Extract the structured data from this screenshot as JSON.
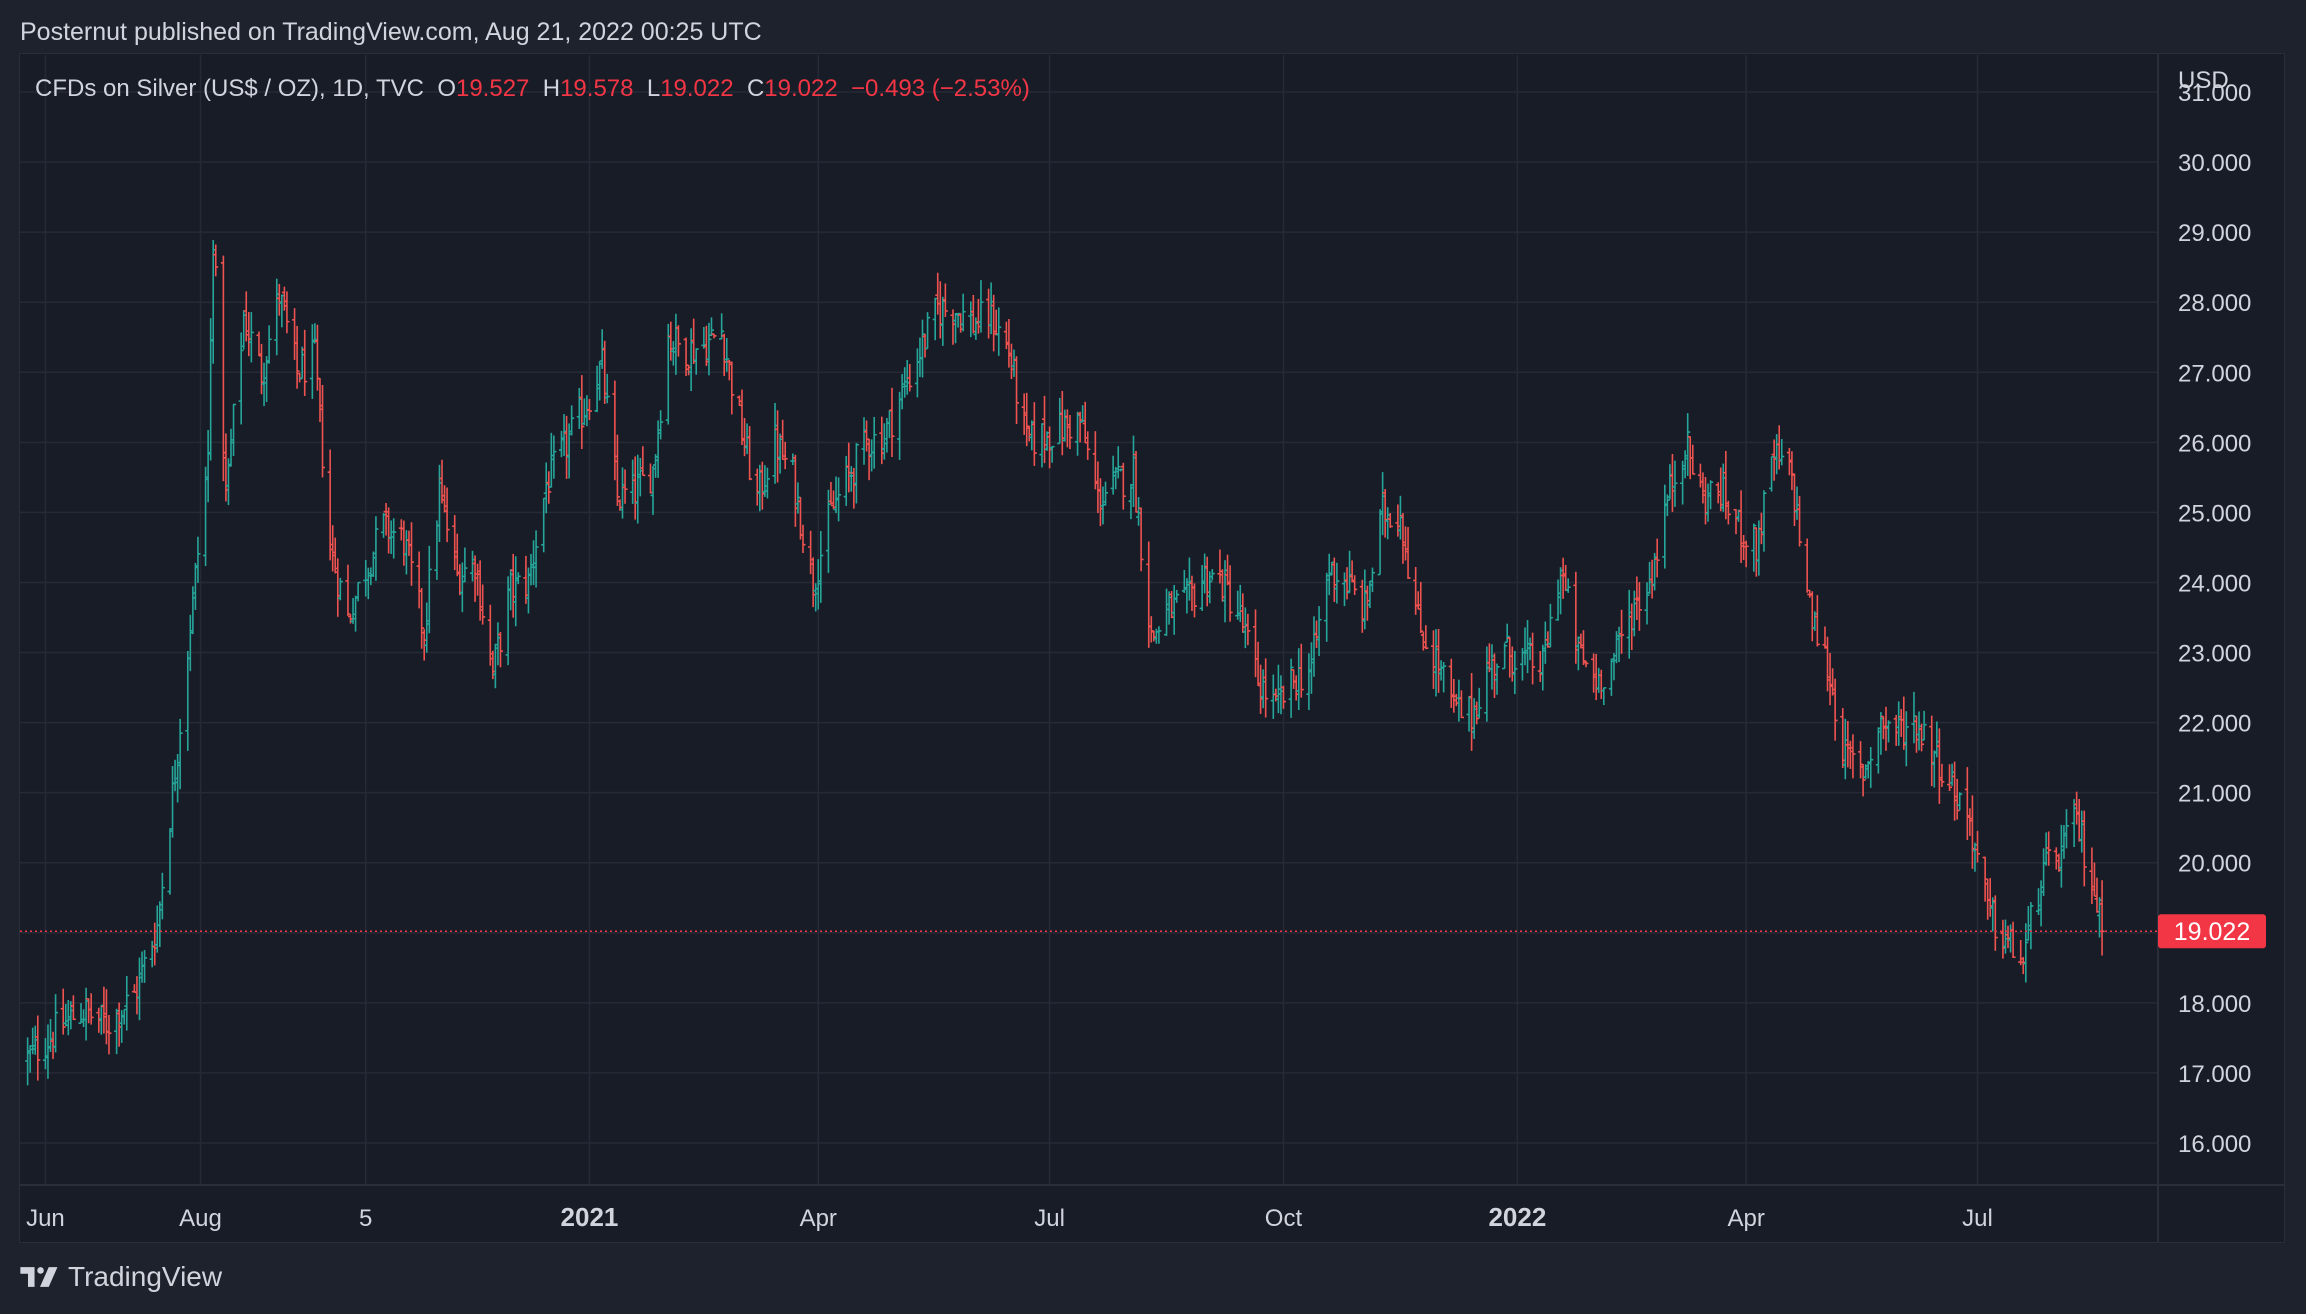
{
  "header": {
    "published": "Posternut published on TradingView.com, Aug 21, 2022 00:25 UTC"
  },
  "legend": {
    "symbol": "CFDs on Silver (US$ / OZ), 1D, TVC",
    "o_label": "O",
    "o_value": "19.527",
    "h_label": "H",
    "h_value": "19.578",
    "l_label": "L",
    "l_value": "19.022",
    "c_label": "C",
    "c_value": "19.022",
    "change": "−0.493 (−2.53%)"
  },
  "colors": {
    "up": "#26a69a",
    "down": "#ef5350",
    "price_tag": "#f23645",
    "grid": "#262a36",
    "text": "#d1d4dc"
  },
  "footer": {
    "brand": "TradingView",
    "logo_icon": "tradingview-logo-icon"
  },
  "chart_data": {
    "type": "ohlc",
    "title": "CFDs on Silver (US$ / OZ), 1D, TVC",
    "currency_label": "USD",
    "y_ticks": [
      "16.000",
      "17.000",
      "18.000",
      "19.000",
      "20.000",
      "21.000",
      "22.000",
      "23.000",
      "24.000",
      "25.000",
      "26.000",
      "27.000",
      "28.000",
      "29.000",
      "30.000",
      "31.000"
    ],
    "x_ticks": [
      {
        "label": "Jun",
        "date": "2020-06-01",
        "bold": false
      },
      {
        "label": "Aug",
        "date": "2020-08-01",
        "bold": false
      },
      {
        "label": "5",
        "date": "2020-10-05",
        "bold": false
      },
      {
        "label": "2021",
        "date": "2021-01-01",
        "bold": true
      },
      {
        "label": "Apr",
        "date": "2021-04-01",
        "bold": false
      },
      {
        "label": "Jul",
        "date": "2021-07-01",
        "bold": false
      },
      {
        "label": "Oct",
        "date": "2021-10-01",
        "bold": false
      },
      {
        "label": "2022",
        "date": "2022-01-01",
        "bold": true
      },
      {
        "label": "Apr",
        "date": "2022-04-01",
        "bold": false
      },
      {
        "label": "Jul",
        "date": "2022-07-01",
        "bold": false
      }
    ],
    "ylim": [
      15.4,
      31.1
    ],
    "xlim": [
      "2020-05-22",
      "2022-09-10"
    ],
    "last_price": 19.022,
    "last_price_label": "19.022",
    "grid": true,
    "series_closes": [
      [
        "2020-05-25",
        17.2
      ],
      [
        "2020-06-05",
        17.6
      ],
      [
        "2020-06-15",
        17.9
      ],
      [
        "2020-06-25",
        17.7
      ],
      [
        "2020-07-06",
        18.1
      ],
      [
        "2020-07-15",
        19.1
      ],
      [
        "2020-07-22",
        21.3
      ],
      [
        "2020-07-28",
        23.4
      ],
      [
        "2020-08-04",
        25.8
      ],
      [
        "2020-08-06",
        29.0
      ],
      [
        "2020-08-11",
        25.2
      ],
      [
        "2020-08-18",
        27.8
      ],
      [
        "2020-08-25",
        27.0
      ],
      [
        "2020-09-01",
        28.1
      ],
      [
        "2020-09-08",
        27.0
      ],
      [
        "2020-09-15",
        27.2
      ],
      [
        "2020-09-21",
        24.5
      ],
      [
        "2020-09-28",
        23.5
      ],
      [
        "2020-10-05",
        24.2
      ],
      [
        "2020-10-12",
        24.8
      ],
      [
        "2020-10-20",
        24.6
      ],
      [
        "2020-10-28",
        23.3
      ],
      [
        "2020-11-03",
        25.3
      ],
      [
        "2020-11-10",
        24.1
      ],
      [
        "2020-11-17",
        24.3
      ],
      [
        "2020-11-24",
        22.7
      ],
      [
        "2020-12-01",
        23.9
      ],
      [
        "2020-12-08",
        24.0
      ],
      [
        "2020-12-15",
        25.4
      ],
      [
        "2020-12-22",
        25.9
      ],
      [
        "2020-12-30",
        26.5
      ],
      [
        "2021-01-06",
        27.1
      ],
      [
        "2021-01-12",
        25.2
      ],
      [
        "2021-01-19",
        25.3
      ],
      [
        "2021-01-26",
        25.6
      ],
      [
        "2021-02-01",
        27.5
      ],
      [
        "2021-02-08",
        27.3
      ],
      [
        "2021-02-16",
        27.4
      ],
      [
        "2021-02-22",
        27.6
      ],
      [
        "2021-03-01",
        26.3
      ],
      [
        "2021-03-08",
        25.2
      ],
      [
        "2021-03-15",
        26.0
      ],
      [
        "2021-03-22",
        25.5
      ],
      [
        "2021-03-30",
        24.0
      ],
      [
        "2021-04-06",
        25.0
      ],
      [
        "2021-04-13",
        25.5
      ],
      [
        "2021-04-20",
        26.0
      ],
      [
        "2021-04-27",
        26.1
      ],
      [
        "2021-05-04",
        26.7
      ],
      [
        "2021-05-11",
        27.3
      ],
      [
        "2021-05-18",
        27.9
      ],
      [
        "2021-05-25",
        27.9
      ],
      [
        "2021-06-01",
        27.7
      ],
      [
        "2021-06-08",
        27.8
      ],
      [
        "2021-06-15",
        27.3
      ],
      [
        "2021-06-22",
        26.0
      ],
      [
        "2021-06-29",
        26.1
      ],
      [
        "2021-07-06",
        26.2
      ],
      [
        "2021-07-13",
        26.3
      ],
      [
        "2021-07-20",
        25.2
      ],
      [
        "2021-07-27",
        25.4
      ],
      [
        "2021-08-03",
        25.6
      ],
      [
        "2021-08-10",
        23.2
      ],
      [
        "2021-08-17",
        23.6
      ],
      [
        "2021-08-24",
        23.7
      ],
      [
        "2021-08-31",
        24.1
      ],
      [
        "2021-09-07",
        24.0
      ],
      [
        "2021-09-14",
        23.5
      ],
      [
        "2021-09-21",
        22.6
      ],
      [
        "2021-09-28",
        22.2
      ],
      [
        "2021-10-05",
        22.6
      ],
      [
        "2021-10-12",
        22.8
      ],
      [
        "2021-10-19",
        24.2
      ],
      [
        "2021-10-26",
        24.0
      ],
      [
        "2021-11-02",
        23.6
      ],
      [
        "2021-11-09",
        25.0
      ],
      [
        "2021-11-16",
        25.0
      ],
      [
        "2021-11-23",
        23.4
      ],
      [
        "2021-11-30",
        22.9
      ],
      [
        "2021-12-07",
        22.2
      ],
      [
        "2021-12-14",
        22.1
      ],
      [
        "2021-12-21",
        22.8
      ],
      [
        "2021-12-28",
        23.0
      ],
      [
        "2022-01-04",
        22.9
      ],
      [
        "2022-01-11",
        22.8
      ],
      [
        "2022-01-18",
        24.2
      ],
      [
        "2022-01-25",
        23.0
      ],
      [
        "2022-02-01",
        22.6
      ],
      [
        "2022-02-08",
        22.9
      ],
      [
        "2022-02-15",
        23.6
      ],
      [
        "2022-02-22",
        24.0
      ],
      [
        "2022-03-01",
        25.2
      ],
      [
        "2022-03-08",
        26.0
      ],
      [
        "2022-03-15",
        25.2
      ],
      [
        "2022-03-22",
        25.3
      ],
      [
        "2022-03-29",
        24.8
      ],
      [
        "2022-04-05",
        24.5
      ],
      [
        "2022-04-12",
        25.8
      ],
      [
        "2022-04-19",
        25.5
      ],
      [
        "2022-04-26",
        23.6
      ],
      [
        "2022-05-03",
        22.8
      ],
      [
        "2022-05-10",
        21.5
      ],
      [
        "2022-05-17",
        21.3
      ],
      [
        "2022-05-24",
        22.0
      ],
      [
        "2022-05-31",
        21.9
      ],
      [
        "2022-06-07",
        22.0
      ],
      [
        "2022-06-14",
        21.6
      ],
      [
        "2022-06-21",
        21.1
      ],
      [
        "2022-06-28",
        20.6
      ],
      [
        "2022-07-05",
        19.3
      ],
      [
        "2022-07-12",
        18.9
      ],
      [
        "2022-07-19",
        18.6
      ],
      [
        "2022-07-26",
        19.8
      ],
      [
        "2022-08-02",
        20.1
      ],
      [
        "2022-08-09",
        20.6
      ],
      [
        "2022-08-16",
        19.6
      ],
      [
        "2022-08-19",
        19.022
      ]
    ]
  }
}
